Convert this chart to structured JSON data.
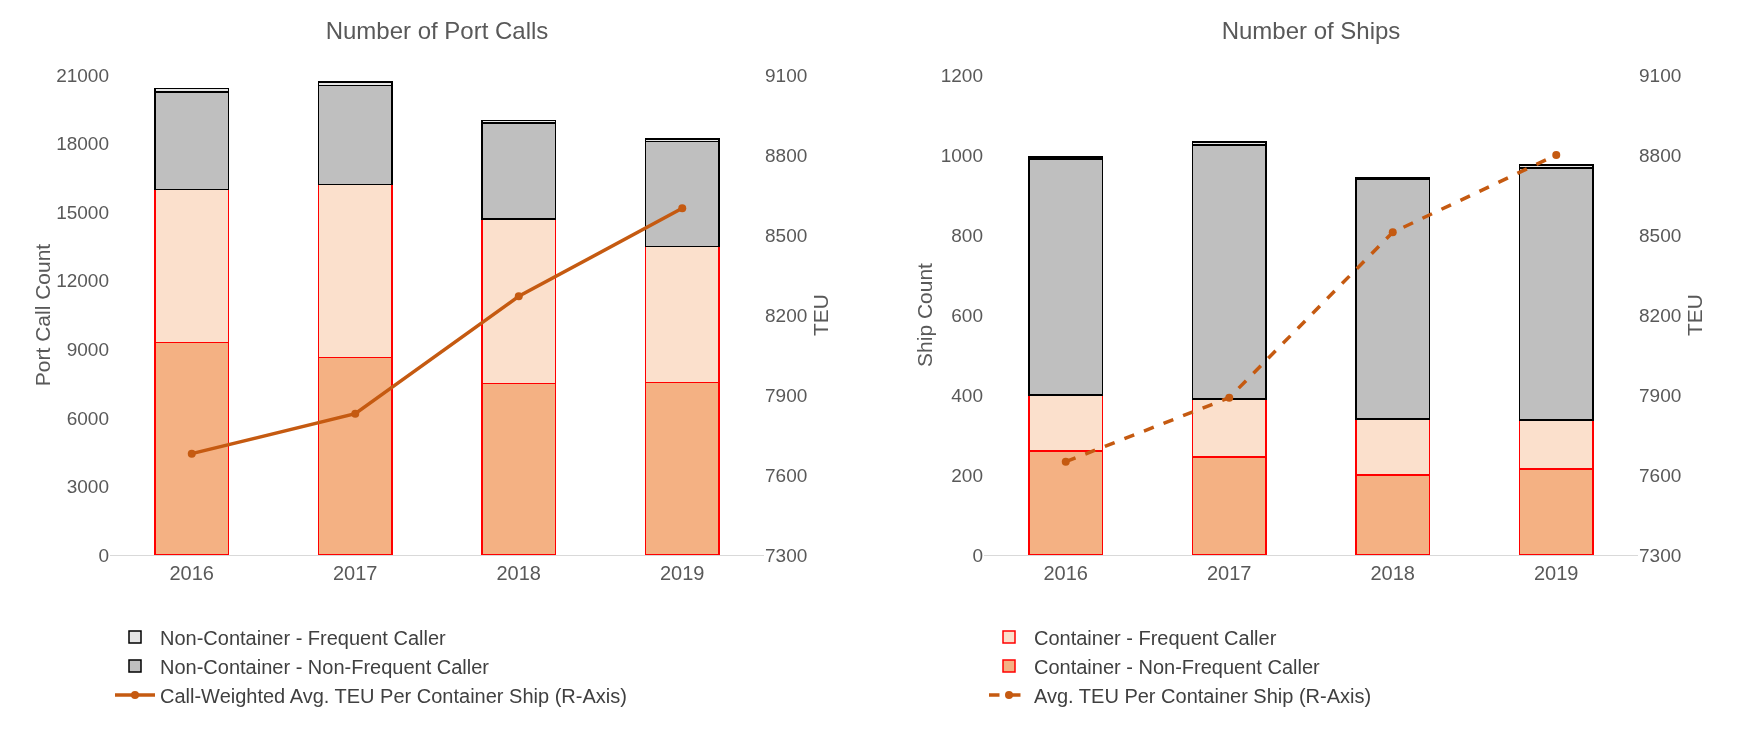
{
  "chart_data": [
    {
      "type": "bar",
      "title": "Number of Port Calls",
      "ylabel": "Port Call Count",
      "y2label": "TEU",
      "categories": [
        "2016",
        "2017",
        "2018",
        "2019"
      ],
      "stacked": true,
      "legend": "bottom",
      "grid": false,
      "ylim": [
        0,
        21000
      ],
      "yticks": [
        0,
        3000,
        6000,
        9000,
        12000,
        15000,
        18000,
        21000
      ],
      "y2lim": [
        7300,
        9100
      ],
      "y2ticks": [
        7300,
        7600,
        7900,
        8200,
        8500,
        8800,
        9100
      ],
      "series": [
        {
          "color": "#f4b183",
          "values": [
            9300,
            8650,
            7500,
            7550
          ]
        },
        {
          "color": "#fbe0cc",
          "values": [
            6700,
            7550,
            7200,
            5950
          ]
        },
        {
          "name": "Non-Container - Non-Frequent Caller",
          "color": "#bfbfbf",
          "values": [
            4250,
            4350,
            4200,
            4600
          ]
        },
        {
          "name": "Non-Container - Frequent Caller",
          "color": "#e6e6e6",
          "values": [
            150,
            150,
            100,
            100
          ]
        },
        {
          "name": "Call-Weighted Avg. TEU Per Container Ship (R-Axis)",
          "type": "line",
          "axis": "y2",
          "color": "#c55a11",
          "marker": "circle",
          "line_style": "solid",
          "values": [
            7680,
            7830,
            8270,
            8600
          ]
        }
      ]
    },
    {
      "type": "bar",
      "title": "Number of Ships",
      "ylabel": "Ship Count",
      "y2label": "TEU",
      "categories": [
        "2016",
        "2017",
        "2018",
        "2019"
      ],
      "stacked": true,
      "legend": "bottom",
      "grid": false,
      "ylim": [
        0,
        1200
      ],
      "yticks": [
        0,
        200,
        400,
        600,
        800,
        1000,
        1200
      ],
      "y2lim": [
        7300,
        9100
      ],
      "y2ticks": [
        7300,
        7600,
        7900,
        8200,
        8500,
        8800,
        9100
      ],
      "series": [
        {
          "name": "Container - Non-Frequent Caller",
          "color": "#f4b183",
          "values": [
            260,
            245,
            200,
            215
          ]
        },
        {
          "name": "Container - Frequent Caller",
          "color": "#fbe0cc",
          "values": [
            140,
            145,
            140,
            123
          ]
        },
        {
          "color": "#bfbfbf",
          "values": [
            590,
            635,
            600,
            630
          ]
        },
        {
          "color": "#e6e6e6",
          "values": [
            5,
            8,
            4,
            7
          ]
        },
        {
          "name": "Avg. TEU Per Container Ship (R-Axis)",
          "type": "line",
          "axis": "y2",
          "color": "#c55a11",
          "marker": "circle",
          "line_style": "dashed",
          "values": [
            7650,
            7890,
            8510,
            8800
          ]
        }
      ]
    }
  ]
}
